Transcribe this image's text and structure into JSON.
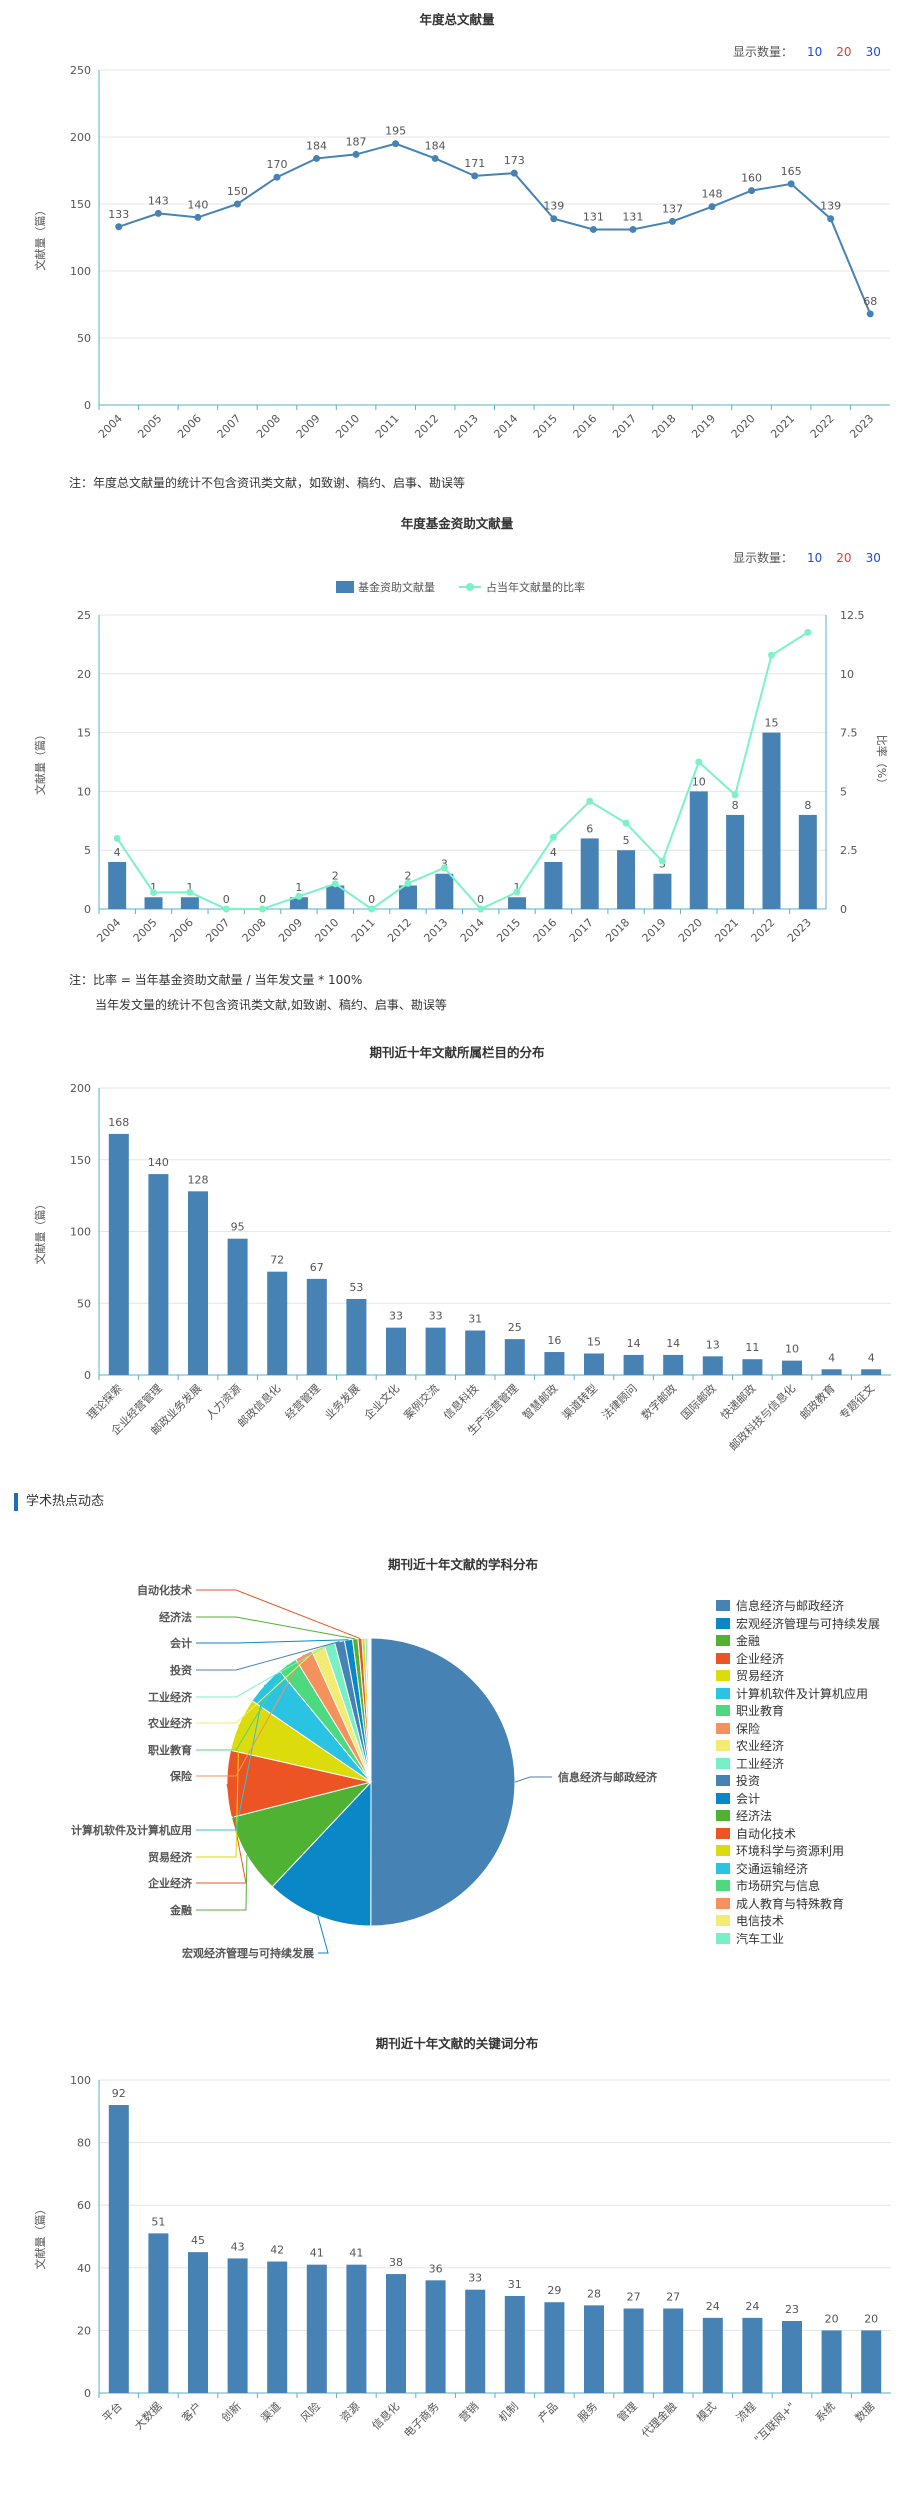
{
  "controls": {
    "show_count_label": "显示数量：",
    "opt10": "10",
    "opt20": "20",
    "opt30": "30"
  },
  "notes": {
    "annual": "注：年度总文献量的统计不包含资讯类文献，如致谢、稿约、启事、勘误等",
    "fund1": "注：比率 = 当年基金资助文献量 / 当年发文量 * 100%",
    "fund2": "当年发文量的统计不包含资讯类文献,如致谢、稿约、启事、勘误等"
  },
  "section": {
    "title": "学术热点动态"
  },
  "colors": {
    "bar": "#4682b4",
    "line": "#4682b4",
    "ratio": "#7cf2c6",
    "axis": "#5ab0c8",
    "grid": "#e6e6e6"
  },
  "chart_data": [
    {
      "type": "line",
      "title": "年度总文献量",
      "ylabel": "文献量（篇）",
      "ylim": [
        0,
        250
      ],
      "yticks": [
        0,
        50,
        100,
        150,
        200,
        250
      ],
      "categories": [
        "2004",
        "2005",
        "2006",
        "2007",
        "2008",
        "2009",
        "2010",
        "2011",
        "2012",
        "2013",
        "2014",
        "2015",
        "2016",
        "2017",
        "2018",
        "2019",
        "2020",
        "2021",
        "2022",
        "2023"
      ],
      "values": [
        133,
        143,
        140,
        150,
        170,
        184,
        187,
        195,
        184,
        171,
        173,
        139,
        131,
        131,
        137,
        148,
        160,
        165,
        139,
        68
      ]
    },
    {
      "type": "bar",
      "title": "年度基金资助文献量",
      "ylabel": "文献量（篇）",
      "y2label": "比率（%）",
      "ylim": [
        0,
        25
      ],
      "yticks": [
        0,
        5,
        10,
        15,
        20,
        25
      ],
      "y2lim": [
        0,
        12.5
      ],
      "y2ticks": [
        "0",
        "2.5",
        "5",
        "7.5",
        "10",
        "12.5"
      ],
      "legend": [
        "基金资助文献量",
        "占当年文献量的比率"
      ],
      "categories": [
        "2004",
        "2005",
        "2006",
        "2007",
        "2008",
        "2009",
        "2010",
        "2011",
        "2012",
        "2013",
        "2014",
        "2015",
        "2016",
        "2017",
        "2018",
        "2019",
        "2020",
        "2021",
        "2022",
        "2023"
      ],
      "series": [
        {
          "name": "基金资助文献量",
          "values": [
            4,
            1,
            1,
            0,
            0,
            1,
            2,
            0,
            2,
            3,
            0,
            1,
            4,
            6,
            5,
            3,
            10,
            8,
            15,
            8
          ]
        },
        {
          "name": "占当年文献量的比率",
          "values": [
            3.0,
            0.7,
            0.71,
            0,
            0,
            0.54,
            1.07,
            0,
            1.09,
            1.75,
            0,
            0.72,
            3.05,
            4.58,
            3.65,
            2.03,
            6.25,
            4.85,
            10.79,
            11.76
          ]
        }
      ]
    },
    {
      "type": "bar",
      "title": "期刊近十年文献所属栏目的分布",
      "ylabel": "文献量（篇）",
      "ylim": [
        0,
        200
      ],
      "yticks": [
        0,
        50,
        100,
        150,
        200
      ],
      "categories": [
        "理论探索",
        "企业经营管理",
        "邮政业务发展",
        "人力资源",
        "邮政信息化",
        "经营管理",
        "业务发展",
        "企业文化",
        "案例交流",
        "信息科技",
        "生产运营管理",
        "智慧邮政",
        "渠道转型",
        "法律顾问",
        "数字邮政",
        "国际邮政",
        "快递邮政",
        "邮政科技与信息化",
        "邮政教育",
        "专题征文"
      ],
      "values": [
        168,
        140,
        128,
        95,
        72,
        67,
        53,
        33,
        33,
        31,
        25,
        16,
        15,
        14,
        14,
        13,
        11,
        10,
        4,
        4
      ]
    },
    {
      "type": "pie",
      "title": "期刊近十年文献的学科分布",
      "categories": [
        "信息经济与邮政经济",
        "宏观经济管理与可持续发展",
        "金融",
        "企业经济",
        "贸易经济",
        "计算机软件及计算机应用",
        "职业教育",
        "保险",
        "农业经济",
        "工业经济",
        "投资",
        "会计",
        "经济法",
        "自动化技术",
        "环境科学与资源利用",
        "交通运输经济",
        "市场研究与信息",
        "成人教育与特殊教育",
        "电信技术",
        "汽车工业"
      ],
      "values": [
        50.0,
        12.0,
        9.0,
        7.5,
        6.0,
        4.5,
        2.2,
        2.0,
        1.5,
        1.2,
        1.1,
        0.9,
        0.6,
        0.45,
        0.35,
        0.2,
        0.15,
        0.12,
        0.1,
        0.08
      ],
      "colors": [
        "#4682b4",
        "#0a87c7",
        "#4fb233",
        "#ec5523",
        "#dcdb0b",
        "#2ac3e2",
        "#4dd97d",
        "#f5915c",
        "#f2ec72",
        "#78f0c5",
        "#4682b4",
        "#0a87c7",
        "#4fb233",
        "#ec5523",
        "#dcdb0b",
        "#2ac3e2",
        "#4dd97d",
        "#f5915c",
        "#f2ec72",
        "#78f0c5"
      ],
      "callouts": [
        "信息经济与邮政经济",
        "宏观经济管理与可持续发展",
        "金融",
        "企业经济",
        "贸易经济",
        "计算机软件及计算机应用",
        "保险",
        "职业教育",
        "农业经济",
        "工业经济",
        "投资",
        "会计",
        "经济法",
        "自动化技术"
      ]
    },
    {
      "type": "bar",
      "title": "期刊近十年文献的关键词分布",
      "ylabel": "文献量（篇）",
      "ylim": [
        0,
        100
      ],
      "yticks": [
        0,
        20,
        40,
        60,
        80,
        100
      ],
      "categories": [
        "平台",
        "大数据",
        "客户",
        "创新",
        "渠道",
        "风险",
        "资源",
        "信息化",
        "电子商务",
        "营销",
        "机制",
        "产品",
        "服务",
        "管理",
        "代理金融",
        "模式",
        "流程",
        "\"互联网+\"",
        "系统",
        "数据"
      ],
      "values": [
        92,
        51,
        45,
        43,
        42,
        41,
        41,
        38,
        36,
        33,
        31,
        29,
        28,
        27,
        27,
        24,
        24,
        23,
        20,
        20
      ]
    }
  ]
}
